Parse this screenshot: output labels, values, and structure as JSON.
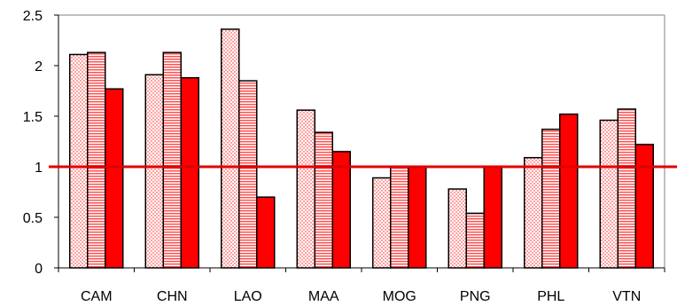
{
  "chart_data": {
    "type": "bar",
    "categories": [
      "CAM",
      "CHN",
      "LAO",
      "MAA",
      "MOG",
      "PNG",
      "PHL",
      "VTN"
    ],
    "series": [
      {
        "fill": "dotted",
        "values": [
          2.11,
          1.91,
          2.36,
          1.56,
          0.89,
          0.78,
          1.09,
          1.46
        ]
      },
      {
        "fill": "striped",
        "values": [
          2.13,
          2.13,
          1.85,
          1.34,
          1.0,
          0.54,
          1.37,
          1.57
        ]
      },
      {
        "fill": "solid",
        "values": [
          1.77,
          1.88,
          0.7,
          1.15,
          1.0,
          1.0,
          1.52,
          1.22
        ]
      }
    ],
    "yticks": [
      "0",
      "0.5",
      "1",
      "1.5",
      "2",
      "2.5"
    ],
    "ylim": [
      0,
      2.5
    ],
    "reference_line": 1,
    "colors": {
      "bar": "#ff0000",
      "pattern": "#ff6060",
      "reference": "#e00000",
      "frame": "#808080"
    },
    "grid": false,
    "title": "",
    "xlabel": "",
    "ylabel": ""
  }
}
